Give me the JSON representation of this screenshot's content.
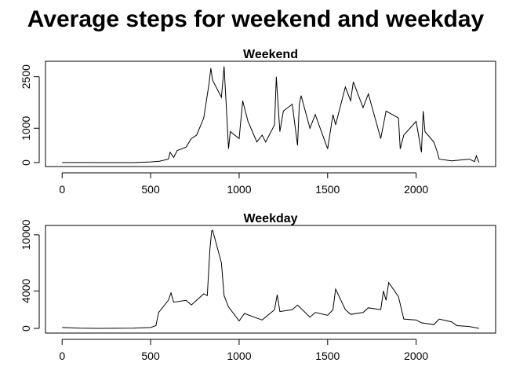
{
  "title": "Average steps for weekend and weekday",
  "chart_data": [
    {
      "type": "line",
      "title": "Weekend",
      "color": "#000000",
      "x": [
        0,
        100,
        200,
        400,
        500,
        550,
        600,
        610,
        630,
        650,
        700,
        730,
        760,
        800,
        830,
        840,
        850,
        900,
        915,
        930,
        940,
        950,
        1000,
        1020,
        1050,
        1100,
        1130,
        1150,
        1200,
        1210,
        1230,
        1250,
        1300,
        1330,
        1340,
        1350,
        1400,
        1430,
        1500,
        1530,
        1545,
        1600,
        1630,
        1645,
        1700,
        1730,
        1800,
        1830,
        1900,
        1910,
        1930,
        2000,
        2030,
        2040,
        2050,
        2100,
        2120,
        2130,
        2200,
        2300,
        2330,
        2340,
        2355
      ],
      "values": [
        0,
        2,
        0,
        0,
        20,
        40,
        100,
        300,
        150,
        350,
        450,
        700,
        800,
        1300,
        2300,
        2750,
        2400,
        1900,
        2800,
        1400,
        400,
        900,
        700,
        1800,
        1200,
        600,
        800,
        600,
        1100,
        2500,
        900,
        1500,
        1700,
        500,
        1700,
        1950,
        1000,
        1400,
        400,
        1400,
        1100,
        2200,
        1800,
        2350,
        1600,
        2000,
        700,
        1500,
        1300,
        400,
        800,
        1200,
        300,
        1500,
        900,
        600,
        300,
        100,
        50,
        100,
        30,
        200,
        0
      ],
      "xlim": [
        -94,
        2449
      ],
      "ylim": [
        -115,
        2950
      ],
      "xticks": [
        0,
        500,
        1000,
        1500,
        2000
      ],
      "yticks": [
        0,
        1000,
        2500
      ]
    },
    {
      "type": "line",
      "title": "Weekday",
      "color": "#000000",
      "x": [
        0,
        100,
        200,
        400,
        500,
        530,
        545,
        600,
        615,
        630,
        700,
        730,
        800,
        820,
        835,
        845,
        850,
        900,
        915,
        940,
        1000,
        1030,
        1100,
        1130,
        1200,
        1215,
        1230,
        1300,
        1330,
        1400,
        1430,
        1500,
        1530,
        1545,
        1600,
        1630,
        1700,
        1730,
        1800,
        1815,
        1830,
        1845,
        1900,
        1930,
        2000,
        2030,
        2100,
        2130,
        2200,
        2230,
        2300,
        2355
      ],
      "values": [
        100,
        20,
        0,
        20,
        100,
        300,
        1700,
        3000,
        3800,
        2800,
        3000,
        2500,
        3700,
        3500,
        8500,
        10400,
        10500,
        7000,
        3500,
        2300,
        800,
        1600,
        1100,
        900,
        2000,
        3600,
        1800,
        2000,
        2500,
        1200,
        1700,
        1400,
        2000,
        4200,
        2000,
        1500,
        1700,
        2200,
        2000,
        4000,
        3000,
        4900,
        3400,
        1000,
        900,
        600,
        400,
        1000,
        700,
        300,
        200,
        0
      ],
      "xlim": [
        -94,
        2449
      ],
      "ylim": [
        -500,
        11000
      ],
      "xticks": [
        0,
        500,
        1000,
        1500,
        2000
      ],
      "yticks": [
        0,
        4000,
        10000
      ]
    }
  ]
}
